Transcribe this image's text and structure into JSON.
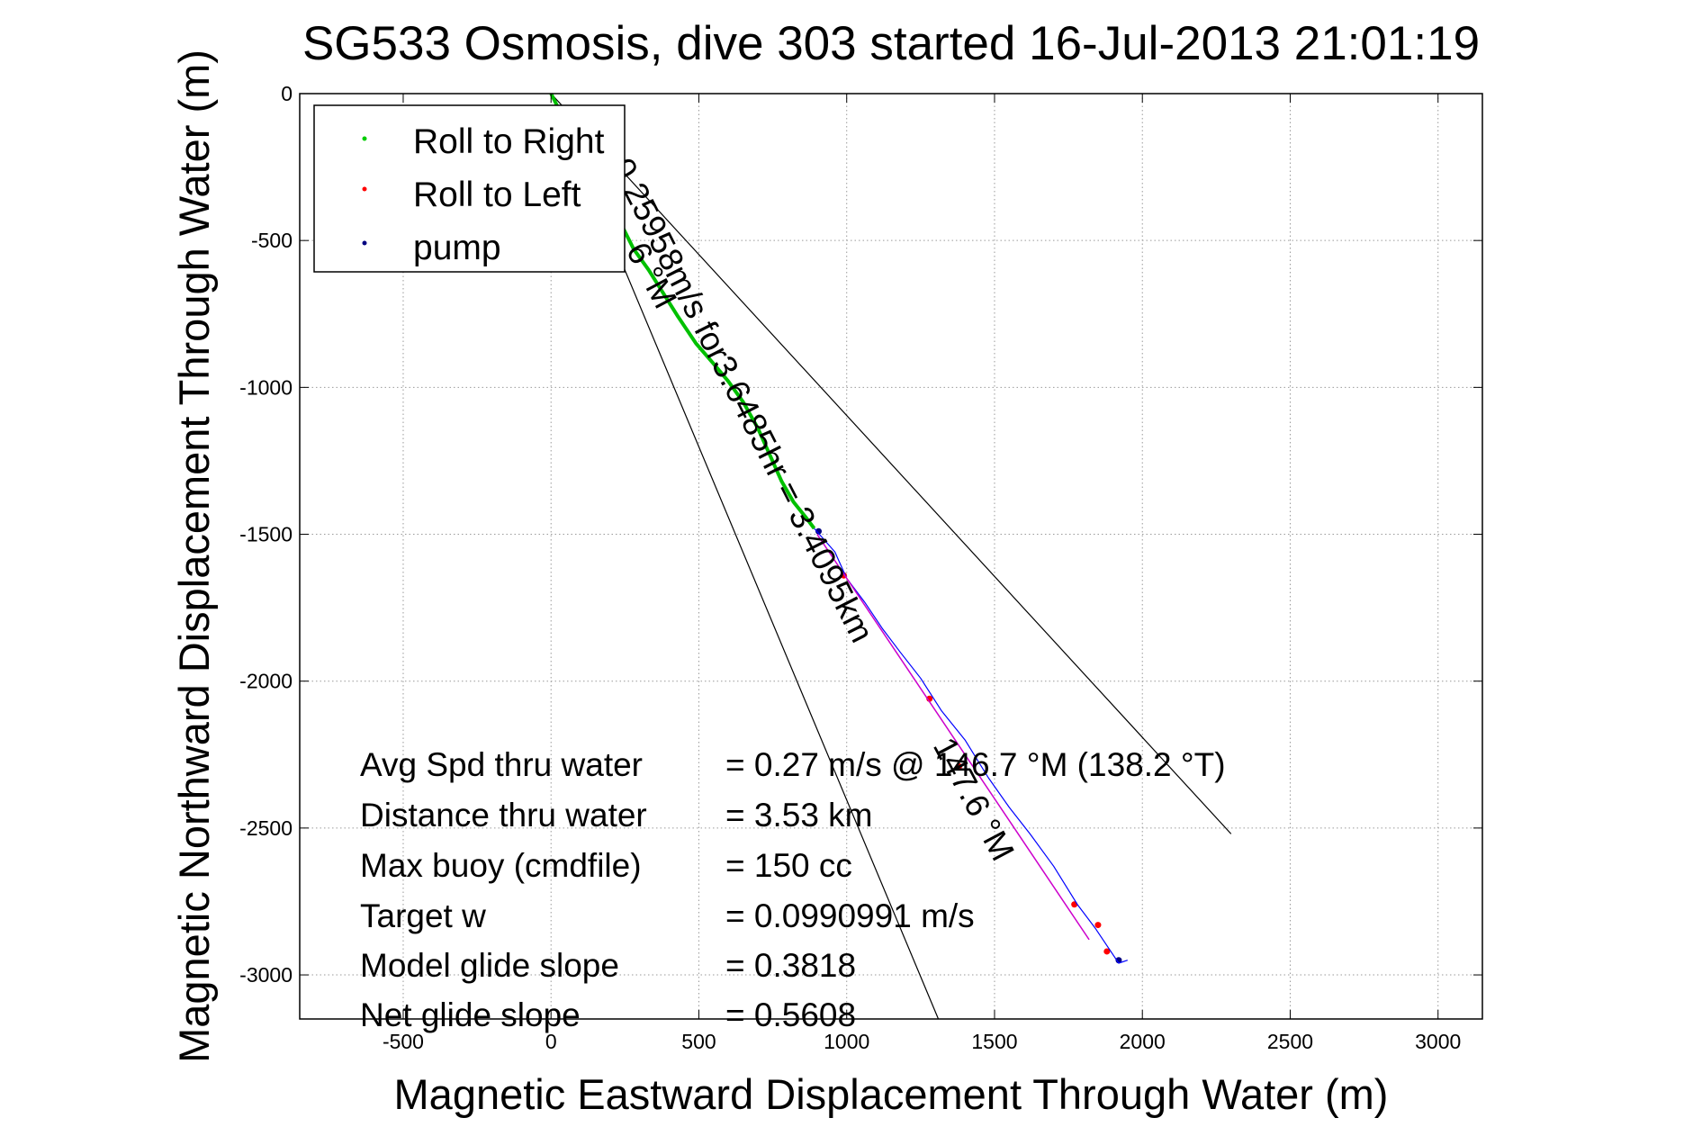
{
  "chart_data": {
    "type": "line",
    "title": "SG533 Osmosis, dive 303 started 16-Jul-2013 21:01:19",
    "xlabel": "Magnetic Eastward Displacement Through Water (m)",
    "ylabel": "Magnetic Northward Displacement Through Water (m)",
    "xlim": [
      -850,
      3150
    ],
    "ylim": [
      -3150,
      0
    ],
    "xticks": [
      -500,
      0,
      500,
      1000,
      1500,
      2000,
      2500,
      3000
    ],
    "yticks": [
      0,
      -500,
      -1000,
      -1500,
      -2000,
      -2500,
      -3000
    ],
    "xtick_labels": [
      "-500",
      "0",
      "500",
      "1000",
      "1500",
      "2000",
      "2500",
      "3000"
    ],
    "ytick_labels": [
      "0",
      "-500",
      "-1000",
      "-1500",
      "-2000",
      "-2500",
      "-3000"
    ],
    "grid": true,
    "legend": {
      "placement": "top-left",
      "entries": [
        {
          "label": "Roll to Right",
          "color": "#00cc00"
        },
        {
          "label": "Roll to Left",
          "color": "#ff0000"
        },
        {
          "label": "pump",
          "color": "#000080"
        }
      ]
    },
    "series": [
      {
        "name": "Roll to Right",
        "color": "#00c000",
        "x": [
          0,
          10,
          40,
          80,
          120,
          160,
          200,
          240,
          280,
          330,
          380,
          430,
          490,
          550,
          600,
          650,
          700,
          740,
          780,
          820,
          860,
          890
        ],
        "y": [
          0,
          -20,
          -80,
          -150,
          -230,
          -300,
          -380,
          -450,
          -530,
          -600,
          -680,
          -760,
          -850,
          -920,
          -980,
          -1050,
          -1140,
          -1230,
          -1320,
          -1390,
          -1440,
          -1480
        ]
      },
      {
        "name": "Roll to Left",
        "color": "#ff0000",
        "x": [
          990,
          1280,
          1380,
          1770,
          1850,
          1880
        ],
        "y": [
          -1640,
          -2060,
          -2290,
          -2760,
          -2830,
          -2920
        ]
      },
      {
        "name": "pump",
        "color": "#000080",
        "x": [
          905,
          1920
        ],
        "y": [
          -1490,
          -2950
        ]
      },
      {
        "name": "Track",
        "color": "#0000ff",
        "x": [
          890,
          960,
          1000,
          1060,
          1120,
          1180,
          1250,
          1320,
          1400,
          1480,
          1550,
          1620,
          1700,
          1780,
          1840,
          1880,
          1920,
          1950
        ],
        "y": [
          -1480,
          -1560,
          -1650,
          -1730,
          -1820,
          -1900,
          -1990,
          -2100,
          -2200,
          -2330,
          -2430,
          -2520,
          -2630,
          -2760,
          -2840,
          -2900,
          -2960,
          -2950
        ]
      },
      {
        "name": "Model",
        "color": "#cc00cc",
        "x": [
          900,
          1400,
          1820
        ],
        "y": [
          -1500,
          -2250,
          -2880
        ]
      }
    ],
    "reference_lines": [
      {
        "x": [
          0,
          2300
        ],
        "y": [
          0,
          -2520
        ],
        "color": "#000000"
      },
      {
        "x": [
          0,
          1310
        ],
        "y": [
          0,
          -3150
        ],
        "color": "#000000"
      }
    ],
    "annotations": {
      "rotated_main": "0.25958m/s for3.6485hr = 3.4095km",
      "rotated_left": "6 °M",
      "rotated_right": "147.6 °M"
    },
    "stats": [
      {
        "label": "Avg Spd thru water",
        "value": "=  0.27 m/s @ 146.7 °M (138.2 °T)"
      },
      {
        "label": "Distance thru water",
        "value": "=  3.53 km"
      },
      {
        "label": "Max buoy (cmdfile)",
        "value": "= 150 cc"
      },
      {
        "label": "Target w",
        "value": "= 0.0990991 m/s"
      },
      {
        "label": "Model glide slope",
        "value": "= 0.3818"
      },
      {
        "label": "Net glide slope",
        "value": "= 0.5608"
      }
    ]
  }
}
